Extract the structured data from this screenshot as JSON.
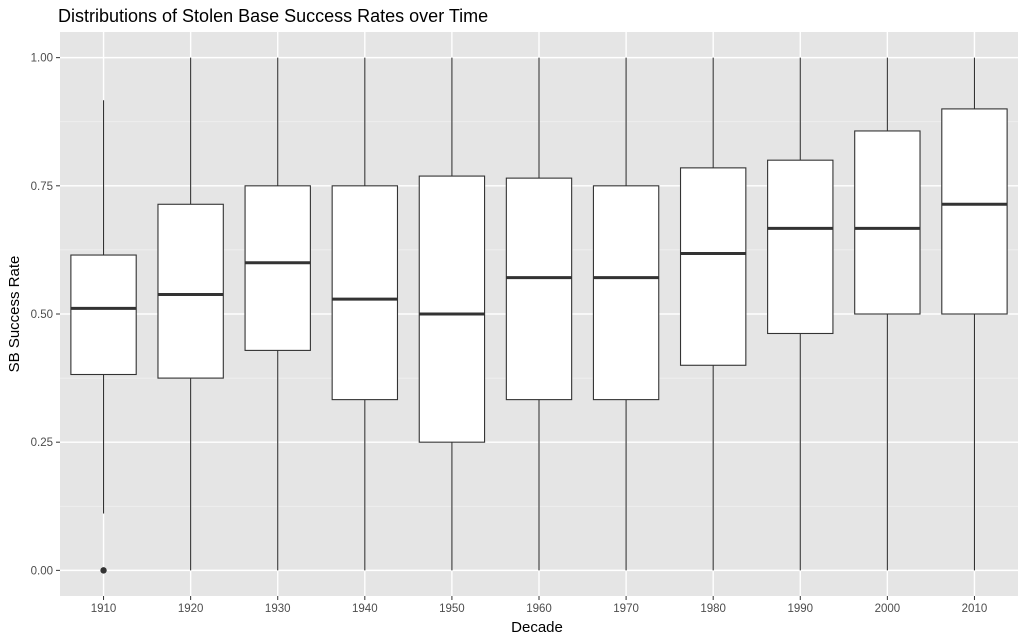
{
  "chart_data": {
    "type": "boxplot",
    "title": "Distributions of Stolen Base Success Rates over Time",
    "xlabel": "Decade",
    "ylabel": "SB Success Rate",
    "ylim": [
      -0.05,
      1.05
    ],
    "yticks": [
      0.0,
      0.25,
      0.5,
      0.75,
      1.0
    ],
    "ytick_labels": [
      "0.00",
      "0.25",
      "0.50",
      "0.75",
      "1.00"
    ],
    "grid": true,
    "background": "#e5e5e5",
    "categories": [
      "1910",
      "1920",
      "1930",
      "1940",
      "1950",
      "1960",
      "1970",
      "1980",
      "1990",
      "2000",
      "2010"
    ],
    "boxes": [
      {
        "decade": "1910",
        "whisker_low": 0.111,
        "q1": 0.382,
        "median": 0.511,
        "q3": 0.615,
        "whisker_high": 0.917,
        "outliers": [
          0.0
        ]
      },
      {
        "decade": "1920",
        "whisker_low": 0.0,
        "q1": 0.375,
        "median": 0.538,
        "q3": 0.714,
        "whisker_high": 1.0,
        "outliers": []
      },
      {
        "decade": "1930",
        "whisker_low": 0.0,
        "q1": 0.429,
        "median": 0.6,
        "q3": 0.75,
        "whisker_high": 1.0,
        "outliers": []
      },
      {
        "decade": "1940",
        "whisker_low": 0.0,
        "q1": 0.333,
        "median": 0.529,
        "q3": 0.75,
        "whisker_high": 1.0,
        "outliers": []
      },
      {
        "decade": "1950",
        "whisker_low": 0.0,
        "q1": 0.25,
        "median": 0.5,
        "q3": 0.769,
        "whisker_high": 1.0,
        "outliers": []
      },
      {
        "decade": "1960",
        "whisker_low": 0.0,
        "q1": 0.333,
        "median": 0.571,
        "q3": 0.765,
        "whisker_high": 1.0,
        "outliers": []
      },
      {
        "decade": "1970",
        "whisker_low": 0.0,
        "q1": 0.333,
        "median": 0.571,
        "q3": 0.75,
        "whisker_high": 1.0,
        "outliers": []
      },
      {
        "decade": "1980",
        "whisker_low": 0.0,
        "q1": 0.4,
        "median": 0.618,
        "q3": 0.785,
        "whisker_high": 1.0,
        "outliers": []
      },
      {
        "decade": "1990",
        "whisker_low": 0.0,
        "q1": 0.462,
        "median": 0.667,
        "q3": 0.8,
        "whisker_high": 1.0,
        "outliers": []
      },
      {
        "decade": "2000",
        "whisker_low": 0.0,
        "q1": 0.5,
        "median": 0.667,
        "q3": 0.857,
        "whisker_high": 1.0,
        "outliers": []
      },
      {
        "decade": "2010",
        "whisker_low": 0.0,
        "q1": 0.5,
        "median": 0.714,
        "q3": 0.9,
        "whisker_high": 1.0,
        "outliers": []
      }
    ]
  }
}
